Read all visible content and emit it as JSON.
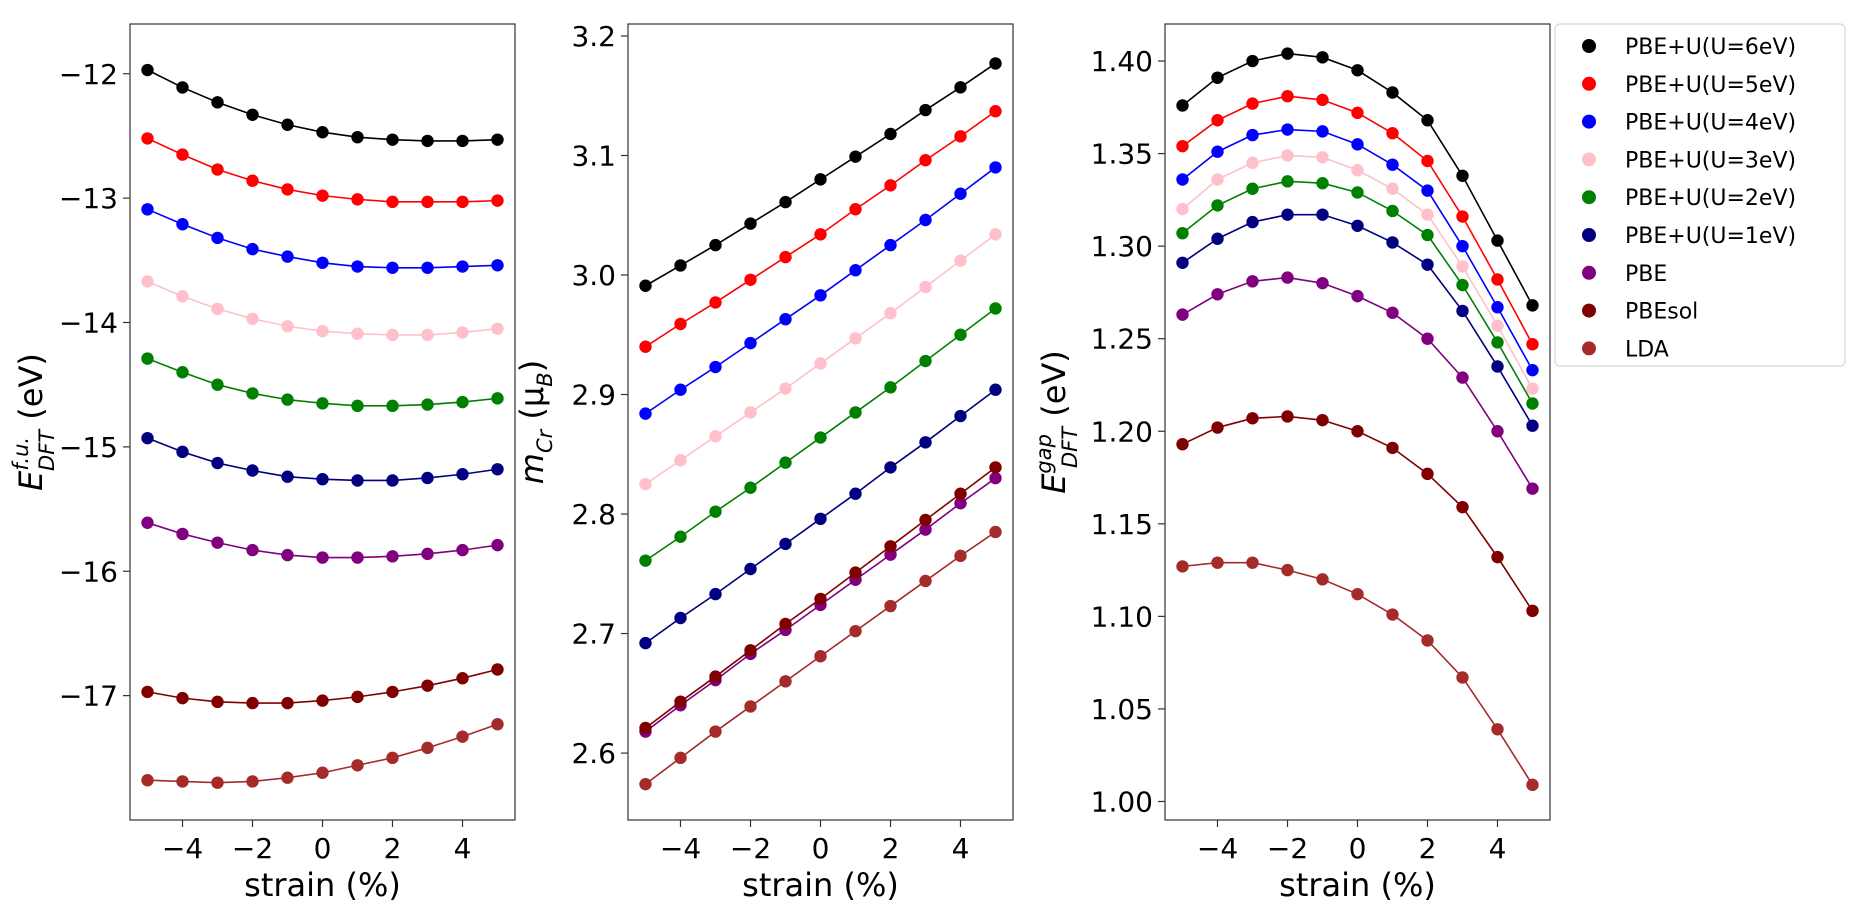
{
  "series_styles": [
    {
      "name": "PBE+U(U=6eV)",
      "color": "#000000"
    },
    {
      "name": "PBE+U(U=5eV)",
      "color": "#ff0000"
    },
    {
      "name": "PBE+U(U=4eV)",
      "color": "#0000ff"
    },
    {
      "name": "PBE+U(U=3eV)",
      "color": "#ffc0cb"
    },
    {
      "name": "PBE+U(U=2eV)",
      "color": "#008000"
    },
    {
      "name": "PBE+U(U=1eV)",
      "color": "#000080"
    },
    {
      "name": "PBE",
      "color": "#800080"
    },
    {
      "name": "PBEsol",
      "color": "#800000"
    },
    {
      "name": "LDA",
      "color": "#a52a2a"
    }
  ],
  "chart_data": [
    {
      "type": "line",
      "title": "",
      "xlabel": "strain (%)",
      "ylabel": "E_DFT^f.u. (eV)",
      "ylabel_main": "E",
      "ylabel_sup": "f.u.",
      "ylabel_sub": "DFT",
      "ylabel_unit": " (eV)",
      "xlim": [
        -5.5,
        5.5
      ],
      "ylim": [
        -18.0,
        -11.6
      ],
      "x": [
        -5,
        -4,
        -3,
        -2,
        -1,
        0,
        1,
        2,
        3,
        4,
        5
      ],
      "xticks": [
        -4,
        -2,
        0,
        2,
        4
      ],
      "xtick_labels": [
        "−4",
        "−2",
        "0",
        "2",
        "4"
      ],
      "yticks": [
        -17,
        -16,
        -15,
        -14,
        -13,
        -12
      ],
      "ytick_labels": [
        "−17",
        "−16",
        "−15",
        "−14",
        "−13",
        "−12"
      ],
      "series": [
        {
          "name": "PBE+U(U=6eV)",
          "values": [
            -11.97,
            -12.11,
            -12.23,
            -12.33,
            -12.41,
            -12.47,
            -12.51,
            -12.53,
            -12.54,
            -12.54,
            -12.53
          ]
        },
        {
          "name": "PBE+U(U=5eV)",
          "values": [
            -12.52,
            -12.65,
            -12.77,
            -12.86,
            -12.93,
            -12.98,
            -13.01,
            -13.03,
            -13.03,
            -13.03,
            -13.02
          ]
        },
        {
          "name": "PBE+U(U=4eV)",
          "values": [
            -13.09,
            -13.21,
            -13.32,
            -13.41,
            -13.47,
            -13.52,
            -13.55,
            -13.56,
            -13.56,
            -13.55,
            -13.54
          ]
        },
        {
          "name": "PBE+U(U=3eV)",
          "values": [
            -13.67,
            -13.79,
            -13.89,
            -13.97,
            -14.03,
            -14.07,
            -14.09,
            -14.1,
            -14.1,
            -14.08,
            -14.05
          ]
        },
        {
          "name": "PBE+U(U=2eV)",
          "values": [
            -14.29,
            -14.4,
            -14.5,
            -14.57,
            -14.62,
            -14.65,
            -14.67,
            -14.67,
            -14.66,
            -14.64,
            -14.61
          ]
        },
        {
          "name": "PBE+U(U=1eV)",
          "values": [
            -14.93,
            -15.04,
            -15.13,
            -15.19,
            -15.24,
            -15.26,
            -15.27,
            -15.27,
            -15.25,
            -15.22,
            -15.18
          ]
        },
        {
          "name": "PBE",
          "values": [
            -15.61,
            -15.7,
            -15.77,
            -15.83,
            -15.87,
            -15.89,
            -15.89,
            -15.88,
            -15.86,
            -15.83,
            -15.79
          ]
        },
        {
          "name": "PBEsol",
          "values": [
            -16.97,
            -17.02,
            -17.05,
            -17.06,
            -17.06,
            -17.04,
            -17.01,
            -16.97,
            -16.92,
            -16.86,
            -16.79
          ]
        },
        {
          "name": "LDA",
          "values": [
            -17.68,
            -17.69,
            -17.7,
            -17.69,
            -17.66,
            -17.62,
            -17.56,
            -17.5,
            -17.42,
            -17.33,
            -17.23
          ]
        }
      ]
    },
    {
      "type": "line",
      "title": "",
      "xlabel": "strain (%)",
      "ylabel": "m_Cr (μ_B)",
      "ylabel_main": "m",
      "ylabel_sub": "Cr",
      "ylabel_unit_open": " (μ",
      "ylabel_unit_sub": "B",
      "ylabel_unit_close": ")",
      "xlim": [
        -5.5,
        5.5
      ],
      "ylim": [
        2.544,
        3.21
      ],
      "x": [
        -5,
        -4,
        -3,
        -2,
        -1,
        0,
        1,
        2,
        3,
        4,
        5
      ],
      "xticks": [
        -4,
        -2,
        0,
        2,
        4
      ],
      "xtick_labels": [
        "−4",
        "−2",
        "0",
        "2",
        "4"
      ],
      "yticks": [
        2.6,
        2.7,
        2.8,
        2.9,
        3.0,
        3.1,
        3.2
      ],
      "ytick_labels": [
        "2.6",
        "2.7",
        "2.8",
        "2.9",
        "3.0",
        "3.1",
        "3.2"
      ],
      "series": [
        {
          "name": "PBE+U(U=6eV)",
          "values": [
            2.991,
            3.008,
            3.025,
            3.043,
            3.061,
            3.08,
            3.099,
            3.118,
            3.138,
            3.157,
            3.177
          ]
        },
        {
          "name": "PBE+U(U=5eV)",
          "values": [
            2.94,
            2.959,
            2.977,
            2.996,
            3.015,
            3.034,
            3.055,
            3.075,
            3.096,
            3.116,
            3.137
          ]
        },
        {
          "name": "PBE+U(U=4eV)",
          "values": [
            2.884,
            2.904,
            2.923,
            2.943,
            2.963,
            2.983,
            3.004,
            3.025,
            3.046,
            3.068,
            3.09
          ]
        },
        {
          "name": "PBE+U(U=3eV)",
          "values": [
            2.825,
            2.845,
            2.865,
            2.885,
            2.905,
            2.926,
            2.947,
            2.968,
            2.99,
            3.012,
            3.034
          ]
        },
        {
          "name": "PBE+U(U=2eV)",
          "values": [
            2.761,
            2.781,
            2.802,
            2.822,
            2.843,
            2.864,
            2.885,
            2.906,
            2.928,
            2.95,
            2.972
          ]
        },
        {
          "name": "PBE+U(U=1eV)",
          "values": [
            2.692,
            2.713,
            2.733,
            2.754,
            2.775,
            2.796,
            2.817,
            2.839,
            2.86,
            2.882,
            2.904
          ]
        },
        {
          "name": "PBE",
          "values": [
            2.618,
            2.64,
            2.661,
            2.683,
            2.703,
            2.724,
            2.745,
            2.766,
            2.787,
            2.809,
            2.83
          ]
        },
        {
          "name": "PBEsol",
          "values": [
            2.621,
            2.643,
            2.664,
            2.686,
            2.708,
            2.729,
            2.751,
            2.773,
            2.795,
            2.817,
            2.839
          ]
        },
        {
          "name": "LDA",
          "values": [
            2.574,
            2.596,
            2.618,
            2.639,
            2.66,
            2.681,
            2.702,
            2.723,
            2.744,
            2.765,
            2.785
          ]
        }
      ]
    },
    {
      "type": "line",
      "title": "",
      "xlabel": "strain (%)",
      "ylabel": "E_DFT^gap (eV)",
      "ylabel_main": "E",
      "ylabel_sup": "gap",
      "ylabel_sub": "DFT",
      "ylabel_unit": " (eV)",
      "xlim": [
        -5.5,
        5.5
      ],
      "ylim": [
        0.99,
        1.42
      ],
      "x": [
        -5,
        -4,
        -3,
        -2,
        -1,
        0,
        1,
        2,
        3,
        4,
        5
      ],
      "xticks": [
        -4,
        -2,
        0,
        2,
        4
      ],
      "xtick_labels": [
        "−4",
        "−2",
        "0",
        "2",
        "4"
      ],
      "yticks": [
        1.0,
        1.05,
        1.1,
        1.15,
        1.2,
        1.25,
        1.3,
        1.35,
        1.4
      ],
      "ytick_labels": [
        "1.00",
        "1.05",
        "1.10",
        "1.15",
        "1.20",
        "1.25",
        "1.30",
        "1.35",
        "1.40"
      ],
      "series": [
        {
          "name": "PBE+U(U=6eV)",
          "values": [
            1.376,
            1.391,
            1.4,
            1.404,
            1.402,
            1.395,
            1.383,
            1.368,
            1.338,
            1.303,
            1.268
          ]
        },
        {
          "name": "PBE+U(U=5eV)",
          "values": [
            1.354,
            1.368,
            1.377,
            1.381,
            1.379,
            1.372,
            1.361,
            1.346,
            1.316,
            1.282,
            1.247
          ]
        },
        {
          "name": "PBE+U(U=4eV)",
          "values": [
            1.336,
            1.351,
            1.36,
            1.363,
            1.362,
            1.355,
            1.344,
            1.33,
            1.3,
            1.267,
            1.233
          ]
        },
        {
          "name": "PBE+U(U=3eV)",
          "values": [
            1.32,
            1.336,
            1.345,
            1.349,
            1.348,
            1.341,
            1.331,
            1.317,
            1.289,
            1.257,
            1.223
          ]
        },
        {
          "name": "PBE+U(U=2eV)",
          "values": [
            1.307,
            1.322,
            1.331,
            1.335,
            1.334,
            1.329,
            1.319,
            1.306,
            1.279,
            1.248,
            1.215
          ]
        },
        {
          "name": "PBE+U(U=1eV)",
          "values": [
            1.291,
            1.304,
            1.313,
            1.317,
            1.317,
            1.311,
            1.302,
            1.29,
            1.265,
            1.235,
            1.203
          ]
        },
        {
          "name": "PBE",
          "values": [
            1.263,
            1.274,
            1.281,
            1.283,
            1.28,
            1.273,
            1.264,
            1.25,
            1.229,
            1.2,
            1.169
          ]
        },
        {
          "name": "PBEsol",
          "values": [
            1.193,
            1.202,
            1.207,
            1.208,
            1.206,
            1.2,
            1.191,
            1.177,
            1.159,
            1.132,
            1.103
          ]
        },
        {
          "name": "LDA",
          "values": [
            1.127,
            1.129,
            1.129,
            1.125,
            1.12,
            1.112,
            1.101,
            1.087,
            1.067,
            1.039,
            1.009
          ]
        }
      ]
    }
  ]
}
